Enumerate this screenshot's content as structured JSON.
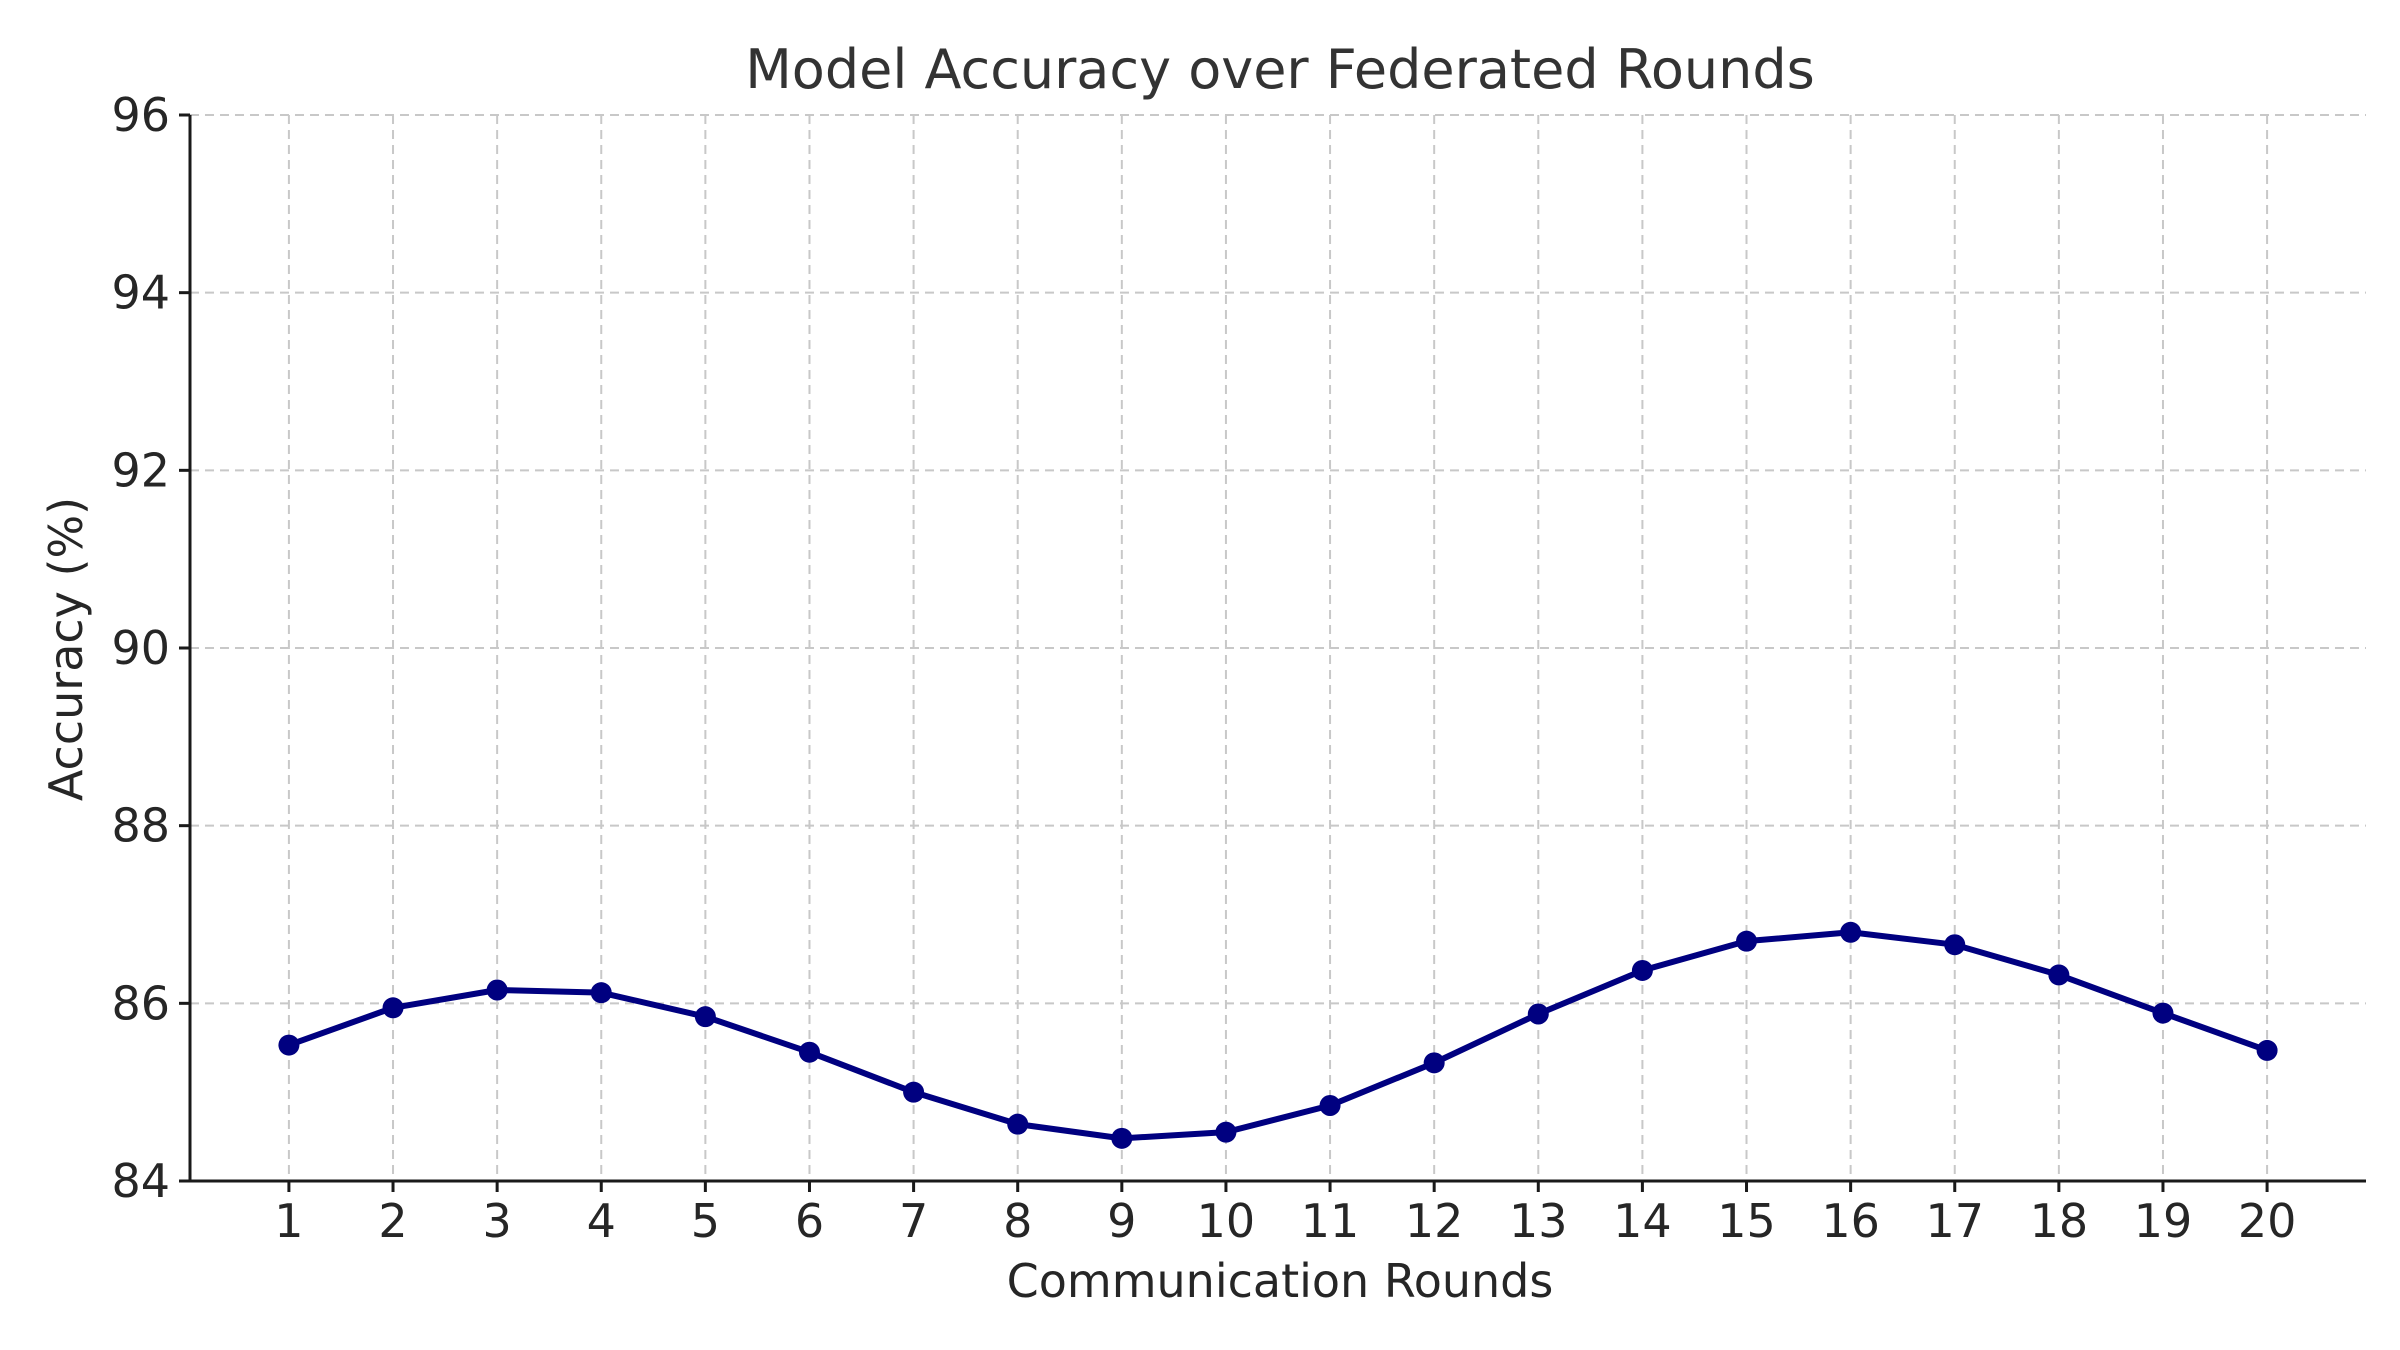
{
  "chart_data": {
    "type": "line",
    "title": "Model Accuracy over Federated Rounds",
    "xlabel": "Communication Rounds",
    "ylabel": "Accuracy (%)",
    "x": [
      1,
      2,
      3,
      4,
      5,
      6,
      7,
      8,
      9,
      10,
      11,
      12,
      13,
      14,
      15,
      16,
      17,
      18,
      19,
      20
    ],
    "xticks": [
      "1",
      "2",
      "3",
      "4",
      "5",
      "6",
      "7",
      "8",
      "9",
      "10",
      "11",
      "12",
      "13",
      "14",
      "15",
      "16",
      "17",
      "18",
      "19",
      "20"
    ],
    "yticks": [
      "84",
      "86",
      "88",
      "90",
      "92",
      "94",
      "96"
    ],
    "ylim": [
      84,
      96
    ],
    "xlim": [
      0.05,
      20.95
    ],
    "grid": true,
    "series": [
      {
        "values": [
          85.53,
          85.95,
          86.15,
          86.12,
          85.85,
          85.45,
          85.0,
          84.64,
          84.48,
          84.55,
          84.85,
          85.33,
          85.88,
          86.37,
          86.7,
          86.8,
          86.66,
          86.32,
          85.89,
          85.47
        ],
        "color": "#000080",
        "marker": "circle"
      }
    ]
  }
}
